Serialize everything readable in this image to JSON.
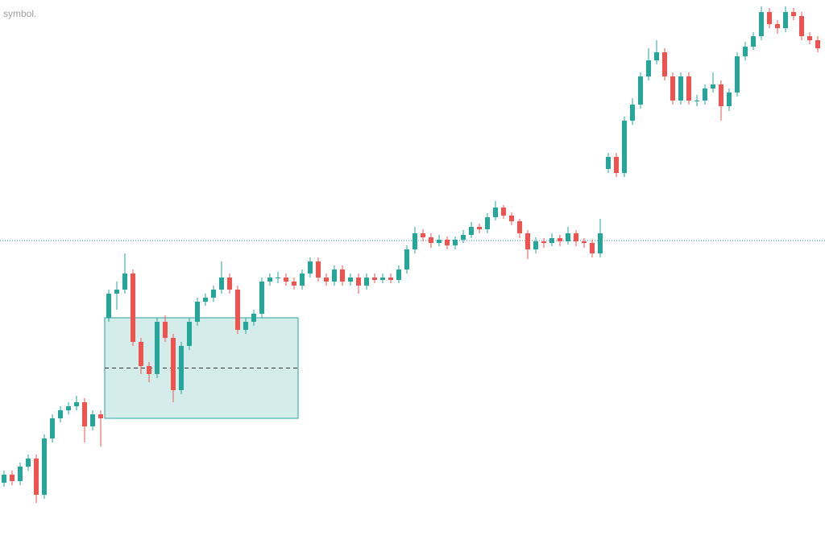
{
  "chart_data": {
    "type": "candlestick",
    "subtitle": "symbol.",
    "up_color": "#26a69a",
    "down_color": "#ef5350",
    "ylim": [
      0,
      670
    ],
    "price_line": 371,
    "zone": {
      "from": 13,
      "to": 36,
      "top": 275,
      "bottom": 150,
      "midline": 212.5
    },
    "candles": [
      [
        70,
        85,
        65,
        80
      ],
      [
        80,
        85,
        67,
        72
      ],
      [
        72,
        95,
        67,
        90
      ],
      [
        90,
        105,
        85,
        100
      ],
      [
        100,
        105,
        45,
        55
      ],
      [
        55,
        130,
        50,
        125
      ],
      [
        125,
        155,
        120,
        150
      ],
      [
        150,
        165,
        145,
        160
      ],
      [
        160,
        170,
        155,
        165
      ],
      [
        165,
        178,
        160,
        170
      ],
      [
        170,
        175,
        120,
        140
      ],
      [
        140,
        160,
        135,
        155
      ],
      [
        155,
        160,
        115,
        150
      ],
      [
        275,
        310,
        270,
        305
      ],
      [
        305,
        320,
        285,
        310
      ],
      [
        310,
        355,
        305,
        330
      ],
      [
        330,
        335,
        240,
        245
      ],
      [
        245,
        250,
        205,
        215
      ],
      [
        215,
        220,
        195,
        205
      ],
      [
        205,
        275,
        200,
        270
      ],
      [
        270,
        278,
        245,
        250
      ],
      [
        250,
        255,
        170,
        185
      ],
      [
        185,
        245,
        180,
        240
      ],
      [
        240,
        275,
        235,
        270
      ],
      [
        270,
        300,
        265,
        295
      ],
      [
        295,
        305,
        290,
        300
      ],
      [
        300,
        315,
        295,
        310
      ],
      [
        310,
        345,
        305,
        325
      ],
      [
        325,
        330,
        305,
        310
      ],
      [
        310,
        315,
        255,
        260
      ],
      [
        260,
        275,
        255,
        270
      ],
      [
        270,
        285,
        265,
        280
      ],
      [
        280,
        325,
        275,
        320
      ],
      [
        320,
        330,
        315,
        325
      ],
      [
        325,
        332,
        318,
        325
      ],
      [
        325,
        330,
        315,
        320
      ],
      [
        320,
        325,
        310,
        315
      ],
      [
        315,
        335,
        310,
        330
      ],
      [
        330,
        350,
        325,
        345
      ],
      [
        345,
        350,
        320,
        325
      ],
      [
        325,
        330,
        315,
        320
      ],
      [
        320,
        340,
        315,
        335
      ],
      [
        335,
        340,
        315,
        320
      ],
      [
        320,
        330,
        315,
        325
      ],
      [
        325,
        330,
        305,
        315
      ],
      [
        315,
        330,
        310,
        325
      ],
      [
        325,
        330,
        318,
        322
      ],
      [
        322,
        330,
        318,
        325
      ],
      [
        325,
        330,
        318,
        322
      ],
      [
        322,
        340,
        318,
        335
      ],
      [
        335,
        365,
        330,
        360
      ],
      [
        360,
        388,
        355,
        380
      ],
      [
        380,
        385,
        370,
        375
      ],
      [
        375,
        380,
        362,
        368
      ],
      [
        368,
        378,
        364,
        372
      ],
      [
        372,
        376,
        360,
        365
      ],
      [
        365,
        376,
        360,
        372
      ],
      [
        372,
        384,
        368,
        378
      ],
      [
        378,
        394,
        374,
        388
      ],
      [
        388,
        392,
        380,
        385
      ],
      [
        385,
        405,
        380,
        400
      ],
      [
        400,
        420,
        396,
        412
      ],
      [
        412,
        415,
        398,
        402
      ],
      [
        402,
        406,
        390,
        395
      ],
      [
        395,
        398,
        374,
        380
      ],
      [
        380,
        384,
        348,
        360
      ],
      [
        360,
        375,
        355,
        370
      ],
      [
        370,
        374,
        362,
        368
      ],
      [
        368,
        380,
        364,
        374
      ],
      [
        374,
        378,
        364,
        370
      ],
      [
        370,
        388,
        366,
        380
      ],
      [
        380,
        384,
        364,
        370
      ],
      [
        370,
        374,
        362,
        368
      ],
      [
        368,
        372,
        350,
        355
      ],
      [
        355,
        398,
        350,
        380
      ],
      [
        460,
        480,
        455,
        475
      ],
      [
        475,
        480,
        450,
        455
      ],
      [
        455,
        525,
        450,
        520
      ],
      [
        520,
        548,
        515,
        540
      ],
      [
        540,
        580,
        535,
        575
      ],
      [
        575,
        610,
        570,
        595
      ],
      [
        595,
        620,
        590,
        605
      ],
      [
        605,
        610,
        570,
        575
      ],
      [
        575,
        580,
        540,
        545
      ],
      [
        545,
        580,
        540,
        575
      ],
      [
        575,
        580,
        540,
        545
      ],
      [
        545,
        552,
        538,
        545
      ],
      [
        545,
        565,
        540,
        560
      ],
      [
        560,
        580,
        555,
        565
      ],
      [
        565,
        570,
        520,
        538
      ],
      [
        538,
        560,
        532,
        555
      ],
      [
        555,
        605,
        550,
        600
      ],
      [
        600,
        618,
        595,
        612
      ],
      [
        612,
        630,
        608,
        625
      ],
      [
        625,
        662,
        620,
        655
      ],
      [
        655,
        660,
        635,
        640
      ],
      [
        640,
        645,
        628,
        635
      ],
      [
        635,
        662,
        630,
        655
      ],
      [
        655,
        660,
        645,
        650
      ],
      [
        650,
        655,
        620,
        625
      ],
      [
        625,
        630,
        615,
        620
      ],
      [
        620,
        625,
        605,
        610
      ]
    ]
  }
}
